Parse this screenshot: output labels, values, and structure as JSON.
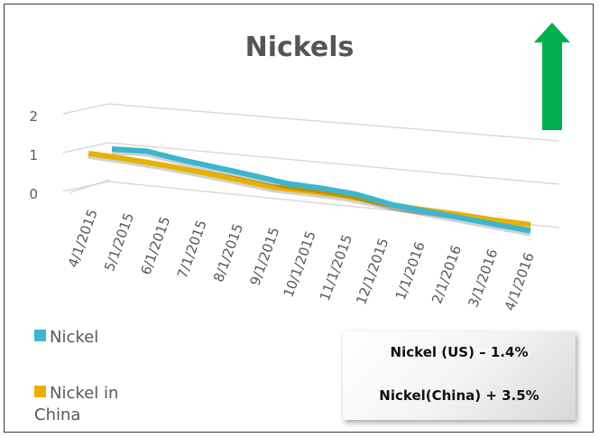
{
  "chart_data": {
    "type": "line",
    "title": "Nickels",
    "categories": [
      "4/1/2015",
      "5/1/2015",
      "6/1/2015",
      "7/1/2015",
      "8/1/2015",
      "9/1/2015",
      "10/1/2015",
      "11/1/2015",
      "12/1/2015",
      "1/1/2016",
      "2/1/2016",
      "3/1/2016",
      "4/1/2016"
    ],
    "y_ticks": [
      "0",
      "1",
      "2"
    ],
    "ylim": [
      0,
      2
    ],
    "grid": true,
    "legend_position": "left",
    "series": [
      {
        "name": "Nickel",
        "color": "#3BB6CE",
        "values": [
          1.0,
          1.05,
          0.92,
          0.82,
          0.72,
          0.6,
          0.58,
          0.52,
          0.35,
          0.27,
          0.2,
          0.13,
          0.06
        ]
      },
      {
        "name": "Nickel in China",
        "color": "#E8B100",
        "values": [
          1.05,
          1.0,
          0.93,
          0.84,
          0.74,
          0.62,
          0.6,
          0.57,
          0.46,
          0.4,
          0.36,
          0.3,
          0.27
        ]
      }
    ]
  },
  "legend": {
    "nickel": "Nickel",
    "nickel_china_line1": "Nickel in",
    "nickel_china_line2": "China"
  },
  "callout": {
    "line1": "Nickel (US) – 1.4%",
    "line2": "Nickel(China) + 3.5%"
  },
  "colors": {
    "arrow": "#00B050",
    "title": "#555555"
  }
}
